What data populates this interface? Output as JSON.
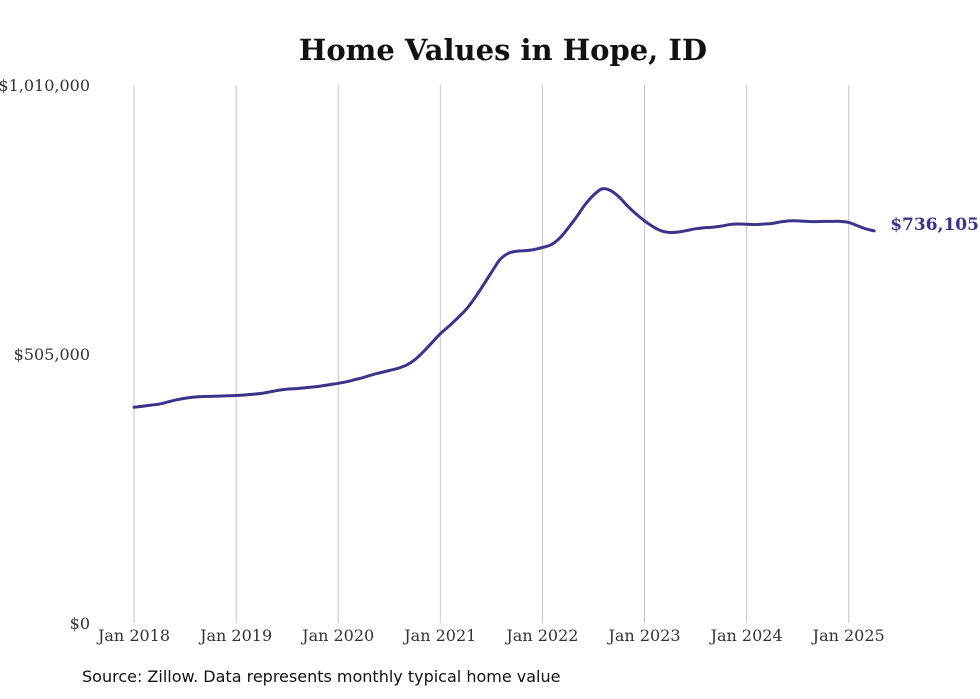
{
  "chart_data": {
    "type": "line",
    "title": "Home Values in Hope, ID",
    "xlabel": "",
    "ylabel": "",
    "ylim": [
      0,
      1010000
    ],
    "y_ticks": [
      {
        "value": 0,
        "label": "$0"
      },
      {
        "value": 505000,
        "label": "$505,000"
      },
      {
        "value": 1010000,
        "label": "$1,010,000"
      }
    ],
    "x_ticks": [
      {
        "date": "2018-01",
        "label": "Jan 2018"
      },
      {
        "date": "2019-01",
        "label": "Jan 2019"
      },
      {
        "date": "2020-01",
        "label": "Jan 2020"
      },
      {
        "date": "2021-01",
        "label": "Jan 2021"
      },
      {
        "date": "2022-01",
        "label": "Jan 2022"
      },
      {
        "date": "2023-01",
        "label": "Jan 2023"
      },
      {
        "date": "2024-01",
        "label": "Jan 2024"
      },
      {
        "date": "2025-01",
        "label": "Jan 2025"
      }
    ],
    "x_range": [
      "2018-01",
      "2025-04"
    ],
    "grid": {
      "vertical": true,
      "horizontal": false
    },
    "series": [
      {
        "color": "#3b3489",
        "end_label": "$736,105",
        "x": [
          "2018-01",
          "2018-02",
          "2018-03",
          "2018-04",
          "2018-05",
          "2018-06",
          "2018-07",
          "2018-08",
          "2018-09",
          "2018-10",
          "2018-11",
          "2018-12",
          "2019-01",
          "2019-02",
          "2019-03",
          "2019-04",
          "2019-05",
          "2019-06",
          "2019-07",
          "2019-08",
          "2019-09",
          "2019-10",
          "2019-11",
          "2019-12",
          "2020-01",
          "2020-02",
          "2020-03",
          "2020-04",
          "2020-05",
          "2020-06",
          "2020-07",
          "2020-08",
          "2020-09",
          "2020-10",
          "2020-11",
          "2020-12",
          "2021-01",
          "2021-02",
          "2021-03",
          "2021-04",
          "2021-05",
          "2021-06",
          "2021-07",
          "2021-08",
          "2021-09",
          "2021-10",
          "2021-11",
          "2021-12",
          "2022-01",
          "2022-02",
          "2022-03",
          "2022-04",
          "2022-05",
          "2022-06",
          "2022-07",
          "2022-08",
          "2022-09",
          "2022-10",
          "2022-11",
          "2022-12",
          "2023-01",
          "2023-02",
          "2023-03",
          "2023-04",
          "2023-05",
          "2023-06",
          "2023-07",
          "2023-08",
          "2023-09",
          "2023-10",
          "2023-11",
          "2023-12",
          "2024-01",
          "2024-02",
          "2024-03",
          "2024-04",
          "2024-05",
          "2024-06",
          "2024-07",
          "2024-08",
          "2024-09",
          "2024-10",
          "2024-11",
          "2024-12",
          "2025-01",
          "2025-02",
          "2025-03",
          "2025-04"
        ],
        "values": [
          405000,
          407000,
          409000,
          411000,
          415000,
          419000,
          422000,
          424000,
          425000,
          425500,
          426000,
          426500,
          427000,
          428000,
          429500,
          431000,
          434000,
          437000,
          439000,
          440000,
          441500,
          443000,
          445000,
          447500,
          450000,
          453000,
          457000,
          461000,
          466000,
          470000,
          474000,
          478000,
          484000,
          494000,
          509000,
          526000,
          543000,
          557000,
          572000,
          588000,
          609000,
          633000,
          658000,
          682000,
          694000,
          698000,
          699000,
          701000,
          705000,
          710000,
          722000,
          741000,
          762000,
          785000,
          803000,
          815000,
          812000,
          800000,
          783000,
          768000,
          755000,
          744000,
          736000,
          733000,
          734000,
          737000,
          740000,
          742000,
          743000,
          745000,
          748000,
          749000,
          748500,
          748000,
          749000,
          750000,
          753000,
          755000,
          755000,
          754000,
          753500,
          754000,
          754000,
          754000,
          752000,
          746000,
          740000,
          736105
        ]
      }
    ]
  },
  "source_note": "Source: Zillow. Data represents monthly typical home value"
}
